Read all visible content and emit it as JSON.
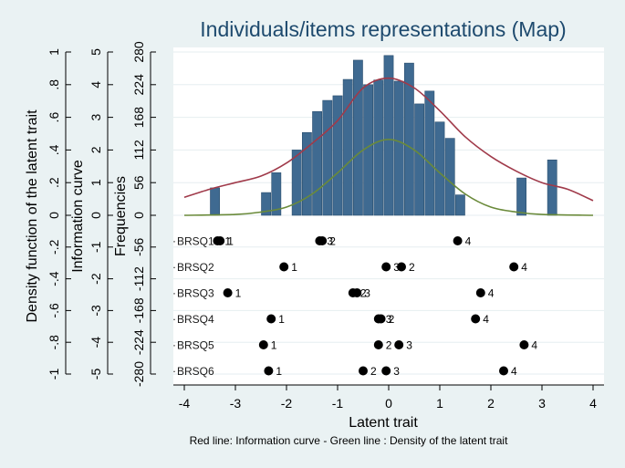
{
  "chart_data": {
    "type": "bar",
    "title": "Individuals/items representations (Map)",
    "xlabel": "Latent trait",
    "note": "Red line: Information curve - Green line : Density of the latent trait",
    "xlim": [
      -4,
      4
    ],
    "x_ticks": [
      "-4",
      "-3",
      "-2",
      "-1",
      "0",
      "1",
      "2",
      "3",
      "4"
    ],
    "y_axes": [
      {
        "label": "Density function of the latent trait",
        "ticks": [
          "-1",
          "-.8",
          "-.6",
          "-.4",
          "-.2",
          "0",
          ".2",
          ".4",
          ".6",
          ".8",
          "1"
        ],
        "ylim": [
          -1,
          1
        ]
      },
      {
        "label": "Information curve",
        "ticks": [
          "-5",
          "-4",
          "-3",
          "-2",
          "-1",
          "0",
          "1",
          "2",
          "3",
          "4",
          "5"
        ],
        "ylim": [
          -5,
          5
        ]
      },
      {
        "label": "Frequencies",
        "ticks": [
          "-280",
          "-224",
          "-168",
          "-112",
          "-56",
          "0",
          "56",
          "112",
          "168",
          "224",
          "280"
        ],
        "ylim": [
          -280,
          280
        ]
      }
    ],
    "histogram": {
      "bin_width": 0.2,
      "centers": [
        -3.4,
        -2.4,
        -2.2,
        -1.8,
        -1.6,
        -1.4,
        -1.2,
        -1.0,
        -0.8,
        -0.6,
        -0.4,
        -0.2,
        0.0,
        0.2,
        0.4,
        0.6,
        0.8,
        1.0,
        1.2,
        1.4,
        2.6,
        3.2
      ],
      "frequencies": [
        47,
        39,
        73,
        112,
        142,
        178,
        197,
        205,
        233,
        266,
        224,
        232,
        274,
        230,
        261,
        191,
        213,
        160,
        132,
        35,
        64,
        95
      ]
    },
    "information_curve": {
      "x": [
        -4.0,
        -3.5,
        -3.0,
        -2.5,
        -2.0,
        -1.5,
        -1.0,
        -0.5,
        0.0,
        0.5,
        1.0,
        1.5,
        2.0,
        2.5,
        3.0,
        3.5,
        4.0
      ],
      "y": [
        0.55,
        0.8,
        1.0,
        1.2,
        1.6,
        2.2,
        2.9,
        3.9,
        4.2,
        3.9,
        3.2,
        2.4,
        1.8,
        1.35,
        1.0,
        0.8,
        0.45
      ],
      "color": "#a03a4a"
    },
    "density_curve": {
      "x": [
        -4.0,
        -3.0,
        -2.5,
        -2.0,
        -1.5,
        -1.0,
        -0.5,
        0.0,
        0.5,
        1.0,
        1.5,
        2.0,
        2.5,
        3.0,
        4.0
      ],
      "y": [
        0.0,
        0.005,
        0.02,
        0.05,
        0.13,
        0.26,
        0.4,
        0.465,
        0.4,
        0.26,
        0.13,
        0.05,
        0.02,
        0.005,
        0.0
      ],
      "color": "#6a8a3a"
    },
    "items": [
      {
        "name": "BRSQ1",
        "label": "BRSQ1",
        "thresholds": [
          {
            "x": -3.35,
            "label": "1"
          },
          {
            "x": -3.3,
            "label": "1"
          },
          {
            "x": -1.35,
            "label": "3"
          },
          {
            "x": -1.3,
            "label": "2"
          },
          {
            "x": 1.35,
            "label": "4"
          }
        ]
      },
      {
        "name": "BRSQ2",
        "label": "BRSQ2",
        "thresholds": [
          {
            "x": -2.05,
            "label": "1"
          },
          {
            "x": -0.05,
            "label": "3"
          },
          {
            "x": 0.25,
            "label": "2"
          },
          {
            "x": 2.45,
            "label": "4"
          }
        ]
      },
      {
        "name": "BRSQ3",
        "label": "BRSQ3",
        "thresholds": [
          {
            "x": -3.15,
            "label": "1"
          },
          {
            "x": -0.7,
            "label": "2"
          },
          {
            "x": -0.62,
            "label": "3"
          },
          {
            "x": 1.8,
            "label": "4"
          }
        ]
      },
      {
        "name": "BRSQ4",
        "label": "BRSQ4",
        "thresholds": [
          {
            "x": -2.3,
            "label": "1"
          },
          {
            "x": -0.2,
            "label": "3"
          },
          {
            "x": -0.15,
            "label": "2"
          },
          {
            "x": 1.7,
            "label": "4"
          }
        ]
      },
      {
        "name": "BRSQ5",
        "label": "BRSQ5",
        "thresholds": [
          {
            "x": -2.45,
            "label": "1"
          },
          {
            "x": -0.2,
            "label": "2"
          },
          {
            "x": 0.2,
            "label": "3"
          },
          {
            "x": 2.65,
            "label": "4"
          }
        ]
      },
      {
        "name": "BRSQ6",
        "label": "BRSQ6",
        "thresholds": [
          {
            "x": -2.35,
            "label": "1"
          },
          {
            "x": -0.5,
            "label": "2"
          },
          {
            "x": -0.05,
            "label": "3"
          },
          {
            "x": 2.25,
            "label": "4"
          }
        ]
      }
    ],
    "colors": {
      "bar": "#3f6a91",
      "bar_edge": "#2c4f6e",
      "plot_bg": "#ffffff",
      "page_bg": "#eaf2f3",
      "title": "#1e4a6e"
    }
  }
}
